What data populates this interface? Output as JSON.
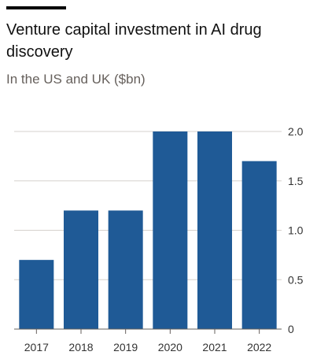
{
  "header": {
    "title": "Venture capital investment in AI drug discovery",
    "subtitle": "In the US and UK ($bn)"
  },
  "colors": {
    "bar": "#1f5a96",
    "grid": "#d6d2cd",
    "axis": "#66605c",
    "rule": "#000000"
  },
  "chart_data": {
    "type": "bar",
    "title": "Venture capital investment in AI drug discovery",
    "subtitle": "In the US and UK ($bn)",
    "xlabel": "",
    "ylabel": "",
    "categories": [
      "2017",
      "2018",
      "2019",
      "2020",
      "2021",
      "2022"
    ],
    "values": [
      0.7,
      1.2,
      1.2,
      2.0,
      2.0,
      1.7
    ],
    "ylim": [
      0,
      2.0
    ],
    "yticks": [
      0,
      0.5,
      1.0,
      1.5,
      2.0
    ],
    "ytick_labels": [
      "0",
      "0.5",
      "1.0",
      "1.5",
      "2.0"
    ],
    "y_axis_position": "right",
    "grid": true,
    "legend": "none"
  }
}
